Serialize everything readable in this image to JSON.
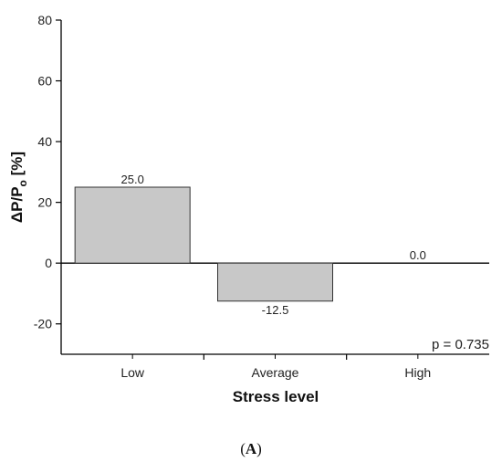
{
  "chart_data": {
    "type": "bar",
    "categories": [
      "Low",
      "Average",
      "High"
    ],
    "values": [
      25.0,
      -12.5,
      0.0
    ],
    "data_labels": [
      "25.0",
      "-12.5",
      "0.0"
    ],
    "xlabel": "Stress level",
    "ylabel": {
      "main": "ΔP/P",
      "subscript": "o",
      "suffix": " [%]"
    },
    "ylim": [
      -30,
      80
    ],
    "yticks": [
      -20,
      0,
      20,
      40,
      60,
      80
    ],
    "grid": false,
    "annotation": "p = 0.735",
    "panel_label": {
      "open": "(",
      "letter": "A",
      "close": ")"
    },
    "colors": {
      "bar_fill": "#c8c8c8",
      "bar_stroke": "#333333",
      "axis": "#000000"
    }
  }
}
